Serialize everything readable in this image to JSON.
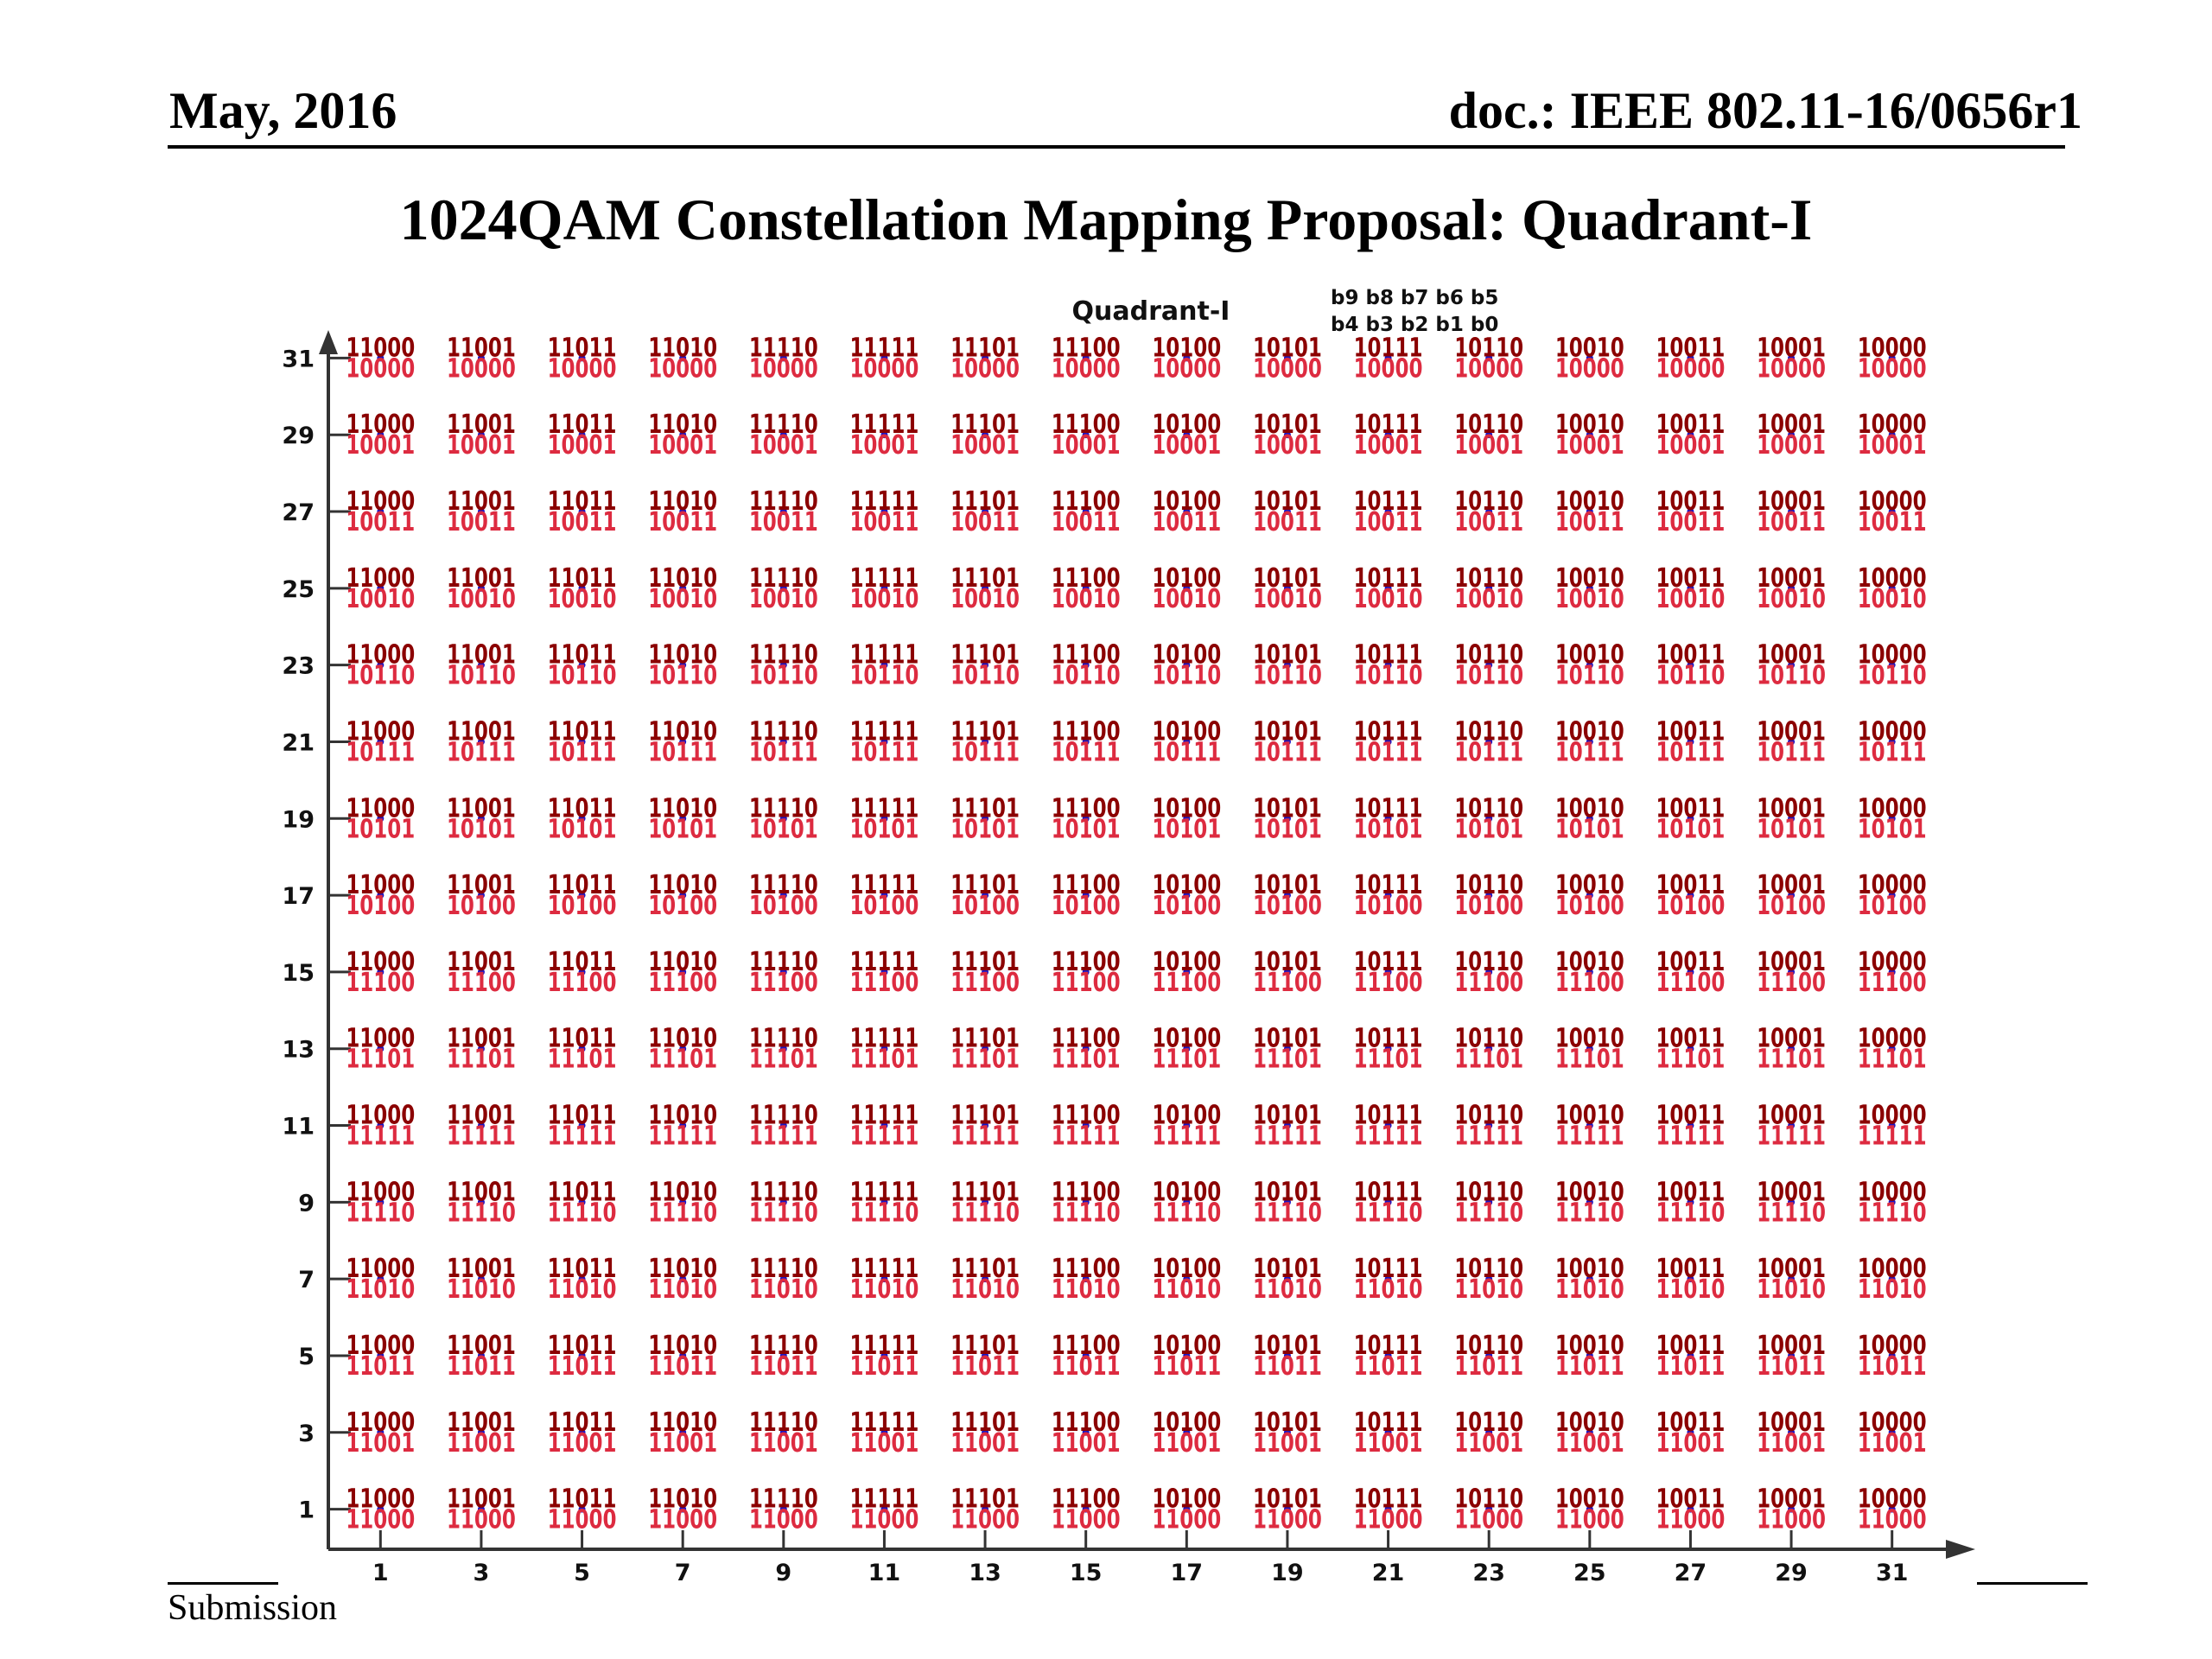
{
  "header": {
    "date": "May, 2016",
    "doc": "doc.: IEEE 802.11-16/0656r1"
  },
  "slide": {
    "title": "1024QAM Constellation Mapping Proposal:  Quadrant-I"
  },
  "footer": {
    "submission": "Submission"
  },
  "colors": {
    "point": "#1515c8",
    "top_bits": "#8b0000",
    "bottom_bits": "#dd2b40",
    "axis": "#333333"
  },
  "chart_data": {
    "type": "scatter",
    "title": "Quadrant-I",
    "legend": {
      "line1": "b9 b8 b7 b6 b5",
      "line2": "b4 b3 b2 b1 b0",
      "placement": "top-center"
    },
    "xlabel": "",
    "ylabel": "",
    "x_ticks": [
      1,
      3,
      5,
      7,
      9,
      11,
      13,
      15,
      17,
      19,
      21,
      23,
      25,
      27,
      29,
      31
    ],
    "y_ticks": [
      1,
      3,
      5,
      7,
      9,
      11,
      13,
      15,
      17,
      19,
      21,
      23,
      25,
      27,
      29,
      31
    ],
    "xlim": [
      0,
      32
    ],
    "ylim": [
      0,
      32
    ],
    "grid": false,
    "x_bits_b9_b5": [
      "11000",
      "11001",
      "11011",
      "11010",
      "11110",
      "11111",
      "11101",
      "11100",
      "10100",
      "10101",
      "10111",
      "10110",
      "10010",
      "10011",
      "10001",
      "10000"
    ],
    "y_bits_b4_b0": [
      "11000",
      "11001",
      "11011",
      "11010",
      "11110",
      "11111",
      "11101",
      "11100",
      "10100",
      "10101",
      "10111",
      "10110",
      "10010",
      "10011",
      "10001",
      "10000"
    ],
    "label_rule": "point (x_i, y_j): top = x_bits_b9_b5[i], bottom = y_bits_b4_b0[j]"
  }
}
